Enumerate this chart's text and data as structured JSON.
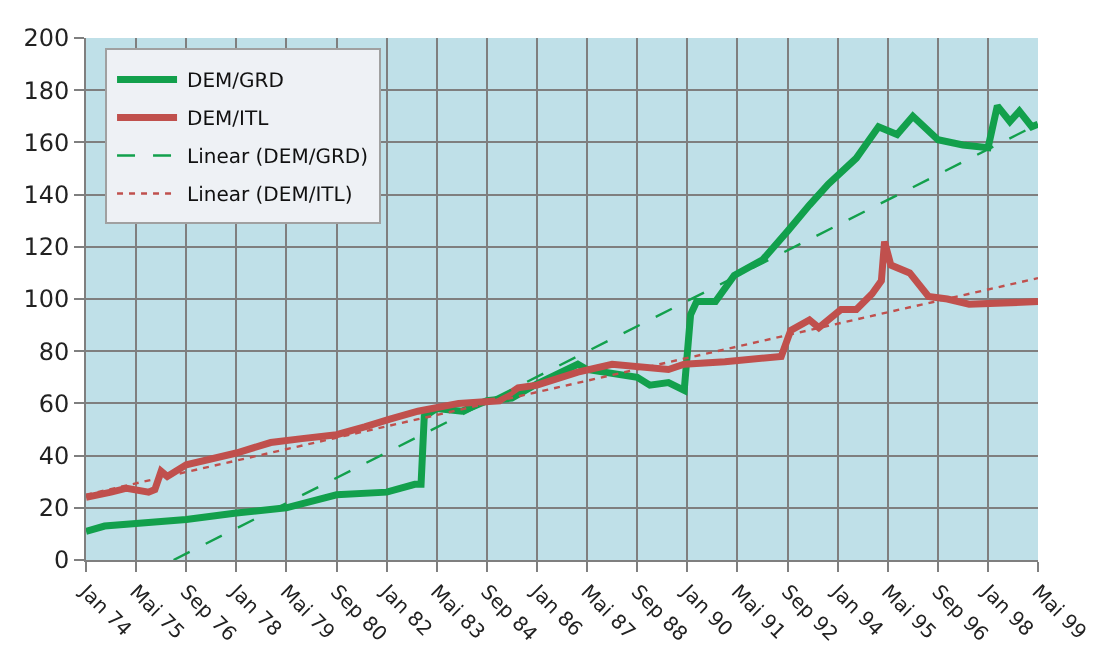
{
  "chart_data": {
    "type": "line",
    "xlim": [
      "1974-01",
      "1999-05"
    ],
    "xticks": [
      {
        "value": "1974-01",
        "label": "Jan 74"
      },
      {
        "value": "1975-05",
        "label": "Mai 75"
      },
      {
        "value": "1976-09",
        "label": "Sep 76"
      },
      {
        "value": "1978-01",
        "label": "Jan 78"
      },
      {
        "value": "1979-05",
        "label": "Mai 79"
      },
      {
        "value": "1980-09",
        "label": "Sep 80"
      },
      {
        "value": "1982-01",
        "label": "Jan 82"
      },
      {
        "value": "1983-05",
        "label": "Mai 83"
      },
      {
        "value": "1984-09",
        "label": "Sep 84"
      },
      {
        "value": "1986-01",
        "label": "Jan 86"
      },
      {
        "value": "1987-05",
        "label": "Mai 87"
      },
      {
        "value": "1988-09",
        "label": "Sep 88"
      },
      {
        "value": "1990-01",
        "label": "Jan 90"
      },
      {
        "value": "1991-05",
        "label": "Mai 91"
      },
      {
        "value": "1992-09",
        "label": "Sep 92"
      },
      {
        "value": "1994-01",
        "label": "Jan 94"
      },
      {
        "value": "1995-05",
        "label": "Mai 95"
      },
      {
        "value": "1996-09",
        "label": "Sep 96"
      },
      {
        "value": "1998-01",
        "label": "Jan 98"
      },
      {
        "value": "1999-05",
        "label": "Mai 99"
      }
    ],
    "ylim": [
      0,
      200
    ],
    "yticks": [
      0,
      20,
      40,
      60,
      80,
      100,
      120,
      140,
      160,
      180,
      200
    ],
    "grid": true,
    "legend": "top left",
    "marker": "none",
    "series": [
      {
        "name": "DEM/GRD",
        "color": "#12a04c",
        "line_style": "solid",
        "x": [
          "1974-01",
          "1974-07",
          "1975-05",
          "1976-09",
          "1978-01",
          "1979-05",
          "1980-09",
          "1982-01",
          "1982-10",
          "1982-12",
          "1983-01",
          "1983-05",
          "1984-01",
          "1984-09",
          "1985-05",
          "1986-01",
          "1987-02",
          "1987-05",
          "1988-09",
          "1989-01",
          "1989-07",
          "1989-12",
          "1990-02",
          "1990-04",
          "1990-10",
          "1991-04",
          "1992-01",
          "1992-09",
          "1993-04",
          "1993-10",
          "1994-07",
          "1995-02",
          "1995-08",
          "1996-01",
          "1996-09",
          "1997-05",
          "1998-01",
          "1998-04",
          "1998-08",
          "1998-11",
          "1999-03",
          "1999-05"
        ],
        "values": [
          11,
          13,
          14,
          15.5,
          18,
          20,
          25,
          26,
          29,
          29,
          55,
          58,
          57,
          61,
          62,
          67.5,
          75,
          73,
          70,
          67,
          68,
          65,
          94,
          99,
          99,
          109,
          115,
          126,
          136,
          144,
          154,
          166,
          163,
          170,
          161,
          159,
          158,
          174,
          168,
          172,
          166,
          167
        ]
      },
      {
        "name": "DEM/ITL",
        "color": "#c0504d",
        "line_style": "solid",
        "x": [
          "1974-01",
          "1974-09",
          "1975-02",
          "1975-09",
          "1975-11",
          "1976-01",
          "1976-03",
          "1976-09",
          "1978-01",
          "1978-12",
          "1979-10",
          "1980-09",
          "1981-06",
          "1982-02",
          "1982-11",
          "1983-12",
          "1985-01",
          "1985-07",
          "1986-01",
          "1987-02",
          "1988-01",
          "1989-07",
          "1989-12",
          "1991-01",
          "1992-07",
          "1992-10",
          "1993-04",
          "1993-07",
          "1994-02",
          "1994-07",
          "1994-12",
          "1995-03",
          "1995-04",
          "1995-06",
          "1995-12",
          "1996-06",
          "1996-12",
          "1997-07",
          "1999-05"
        ],
        "values": [
          24,
          26,
          27.5,
          26,
          27,
          34,
          32,
          36.5,
          41,
          45,
          46.5,
          48,
          51,
          54,
          57,
          60,
          61,
          66,
          67,
          72,
          75,
          73,
          75,
          76,
          78,
          88,
          92,
          89,
          96,
          96,
          102,
          107,
          122,
          113,
          110,
          101,
          100,
          98,
          99
        ]
      },
      {
        "name": "Linear (DEM/GRD)",
        "color": "#12a04c",
        "line_style": "dashed",
        "x": [
          "1976-05",
          "1999-05"
        ],
        "values": [
          0,
          167
        ]
      },
      {
        "name": "Linear (DEM/ITL)",
        "color": "#c0504d",
        "line_style": "dotted",
        "x": [
          "1974-01",
          "1999-05"
        ],
        "values": [
          25,
          108
        ]
      }
    ]
  }
}
